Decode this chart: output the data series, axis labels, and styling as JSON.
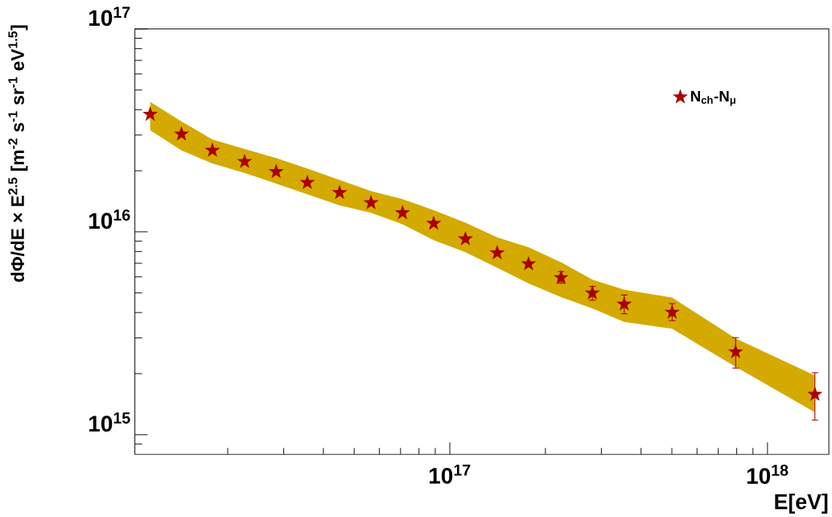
{
  "chart_data": {
    "type": "scatter",
    "xlabel": "E[eV]",
    "ylabel": "dΦ/dE × E$^{2.5}$ [m$^{-2}$ s$^{-1}$ sr$^{-1}$ eV$^{1.5}$]",
    "log": "xy",
    "marker": "star",
    "legend": "top right",
    "xlim": [
      1.02e+16,
      1.56e+18
    ],
    "ylim": [
      800000000000000.0,
      1e+17
    ],
    "xticks": [
      {
        "value": 2e+16,
        "label": null
      },
      {
        "value": 3e+16,
        "label": null
      },
      {
        "value": 4e+16,
        "label": null
      },
      {
        "value": 5e+16,
        "label": null
      },
      {
        "value": 6e+16,
        "label": null
      },
      {
        "value": 7e+16,
        "label": null
      },
      {
        "value": 8e+16,
        "label": null
      },
      {
        "value": 9e+16,
        "label": null
      },
      {
        "value": 1e+17,
        "label": "10$^{17}$"
      },
      {
        "value": 2e+17,
        "label": null
      },
      {
        "value": 3e+17,
        "label": null
      },
      {
        "value": 4e+17,
        "label": null
      },
      {
        "value": 5e+17,
        "label": null
      },
      {
        "value": 6e+17,
        "label": null
      },
      {
        "value": 7e+17,
        "label": null
      },
      {
        "value": 8e+17,
        "label": null
      },
      {
        "value": 9e+17,
        "label": null
      },
      {
        "value": 1e+18,
        "label": "10$^{18}$"
      }
    ],
    "yticks": [
      {
        "value": 900000000000000.0,
        "label": null
      },
      {
        "value": 1000000000000000.0,
        "label": "10$^{15}$"
      },
      {
        "value": 2000000000000000.0,
        "label": null
      },
      {
        "value": 3000000000000000.0,
        "label": null
      },
      {
        "value": 4000000000000000.0,
        "label": null
      },
      {
        "value": 5000000000000000.0,
        "label": null
      },
      {
        "value": 6000000000000000.0,
        "label": null
      },
      {
        "value": 7000000000000000.0,
        "label": null
      },
      {
        "value": 8000000000000000.0,
        "label": null
      },
      {
        "value": 9000000000000000.0,
        "label": null
      },
      {
        "value": 1e+16,
        "label": "10$^{16}$"
      },
      {
        "value": 2e+16,
        "label": null
      },
      {
        "value": 3e+16,
        "label": null
      },
      {
        "value": 4e+16,
        "label": null
      },
      {
        "value": 5e+16,
        "label": null
      },
      {
        "value": 6e+16,
        "label": null
      },
      {
        "value": 7e+16,
        "label": null
      },
      {
        "value": 8e+16,
        "label": null
      },
      {
        "value": 9e+16,
        "label": null
      },
      {
        "value": 1e+17,
        "label": "10$^{17}$"
      }
    ],
    "series": [
      {
        "name": "N$_{ch}$-N$_{μ}$",
        "color": "#aa0000",
        "x": [
          1.14e+16,
          1.43e+16,
          1.79e+16,
          2.26e+16,
          2.84e+16,
          3.56e+16,
          4.5e+16,
          5.65e+16,
          7.1e+16,
          8.9e+16,
          1.12e+17,
          1.41e+17,
          1.77e+17,
          2.24e+17,
          2.81e+17,
          3.54e+17,
          5.01e+17,
          7.94e+17,
          1.41e+18
        ],
        "values": [
          3.79e+16,
          3.03e+16,
          2.52e+16,
          2.22e+16,
          1.98e+16,
          1.75e+16,
          1.56e+16,
          1.39e+16,
          1.24e+16,
          1.1e+16,
          9230000000000000.0,
          7870000000000000.0,
          6950000000000000.0,
          5940000000000000.0,
          4990000000000000.0,
          4400000000000000.0,
          4010000000000000.0,
          2560000000000000.0,
          1580000000000000.0
        ],
        "errors": [
          null,
          null,
          null,
          null,
          null,
          null,
          null,
          null,
          null,
          null,
          null,
          null,
          null,
          [
            5580000000000000.0,
            6370000000000000.0
          ],
          [
            4600000000000000.0,
            5380000000000000.0
          ],
          [
            3950000000000000.0,
            4880000000000000.0
          ],
          [
            3650000000000000.0,
            4430000000000000.0
          ],
          [
            2130000000000000.0,
            3010000000000000.0
          ],
          [
            1180000000000000.0,
            2020000000000000.0
          ]
        ],
        "upper": [
          4.37e+16,
          3.5e+16,
          2.85e+16,
          2.56e+16,
          2.31e+16,
          2.05e+16,
          1.8e+16,
          1.59e+16,
          1.45e+16,
          1.28e+16,
          1.11e+16,
          9400000000000000.0,
          8400000000000000.0,
          7080000000000000.0,
          5810000000000000.0,
          5190000000000000.0,
          4740000000000000.0,
          2980000000000000.0,
          1960000000000000.0
        ],
        "lower": [
          3.17e+16,
          2.52e+16,
          2.17e+16,
          1.95e+16,
          1.73e+16,
          1.53e+16,
          1.35e+16,
          1.24e+16,
          1.09e+16,
          9100000000000000.0,
          7940000000000000.0,
          6650000000000000.0,
          5560000000000000.0,
          4760000000000000.0,
          4190000000000000.0,
          3600000000000000.0,
          3330000000000000.0,
          2160000000000000.0,
          1290000000000000.0
        ]
      }
    ]
  }
}
